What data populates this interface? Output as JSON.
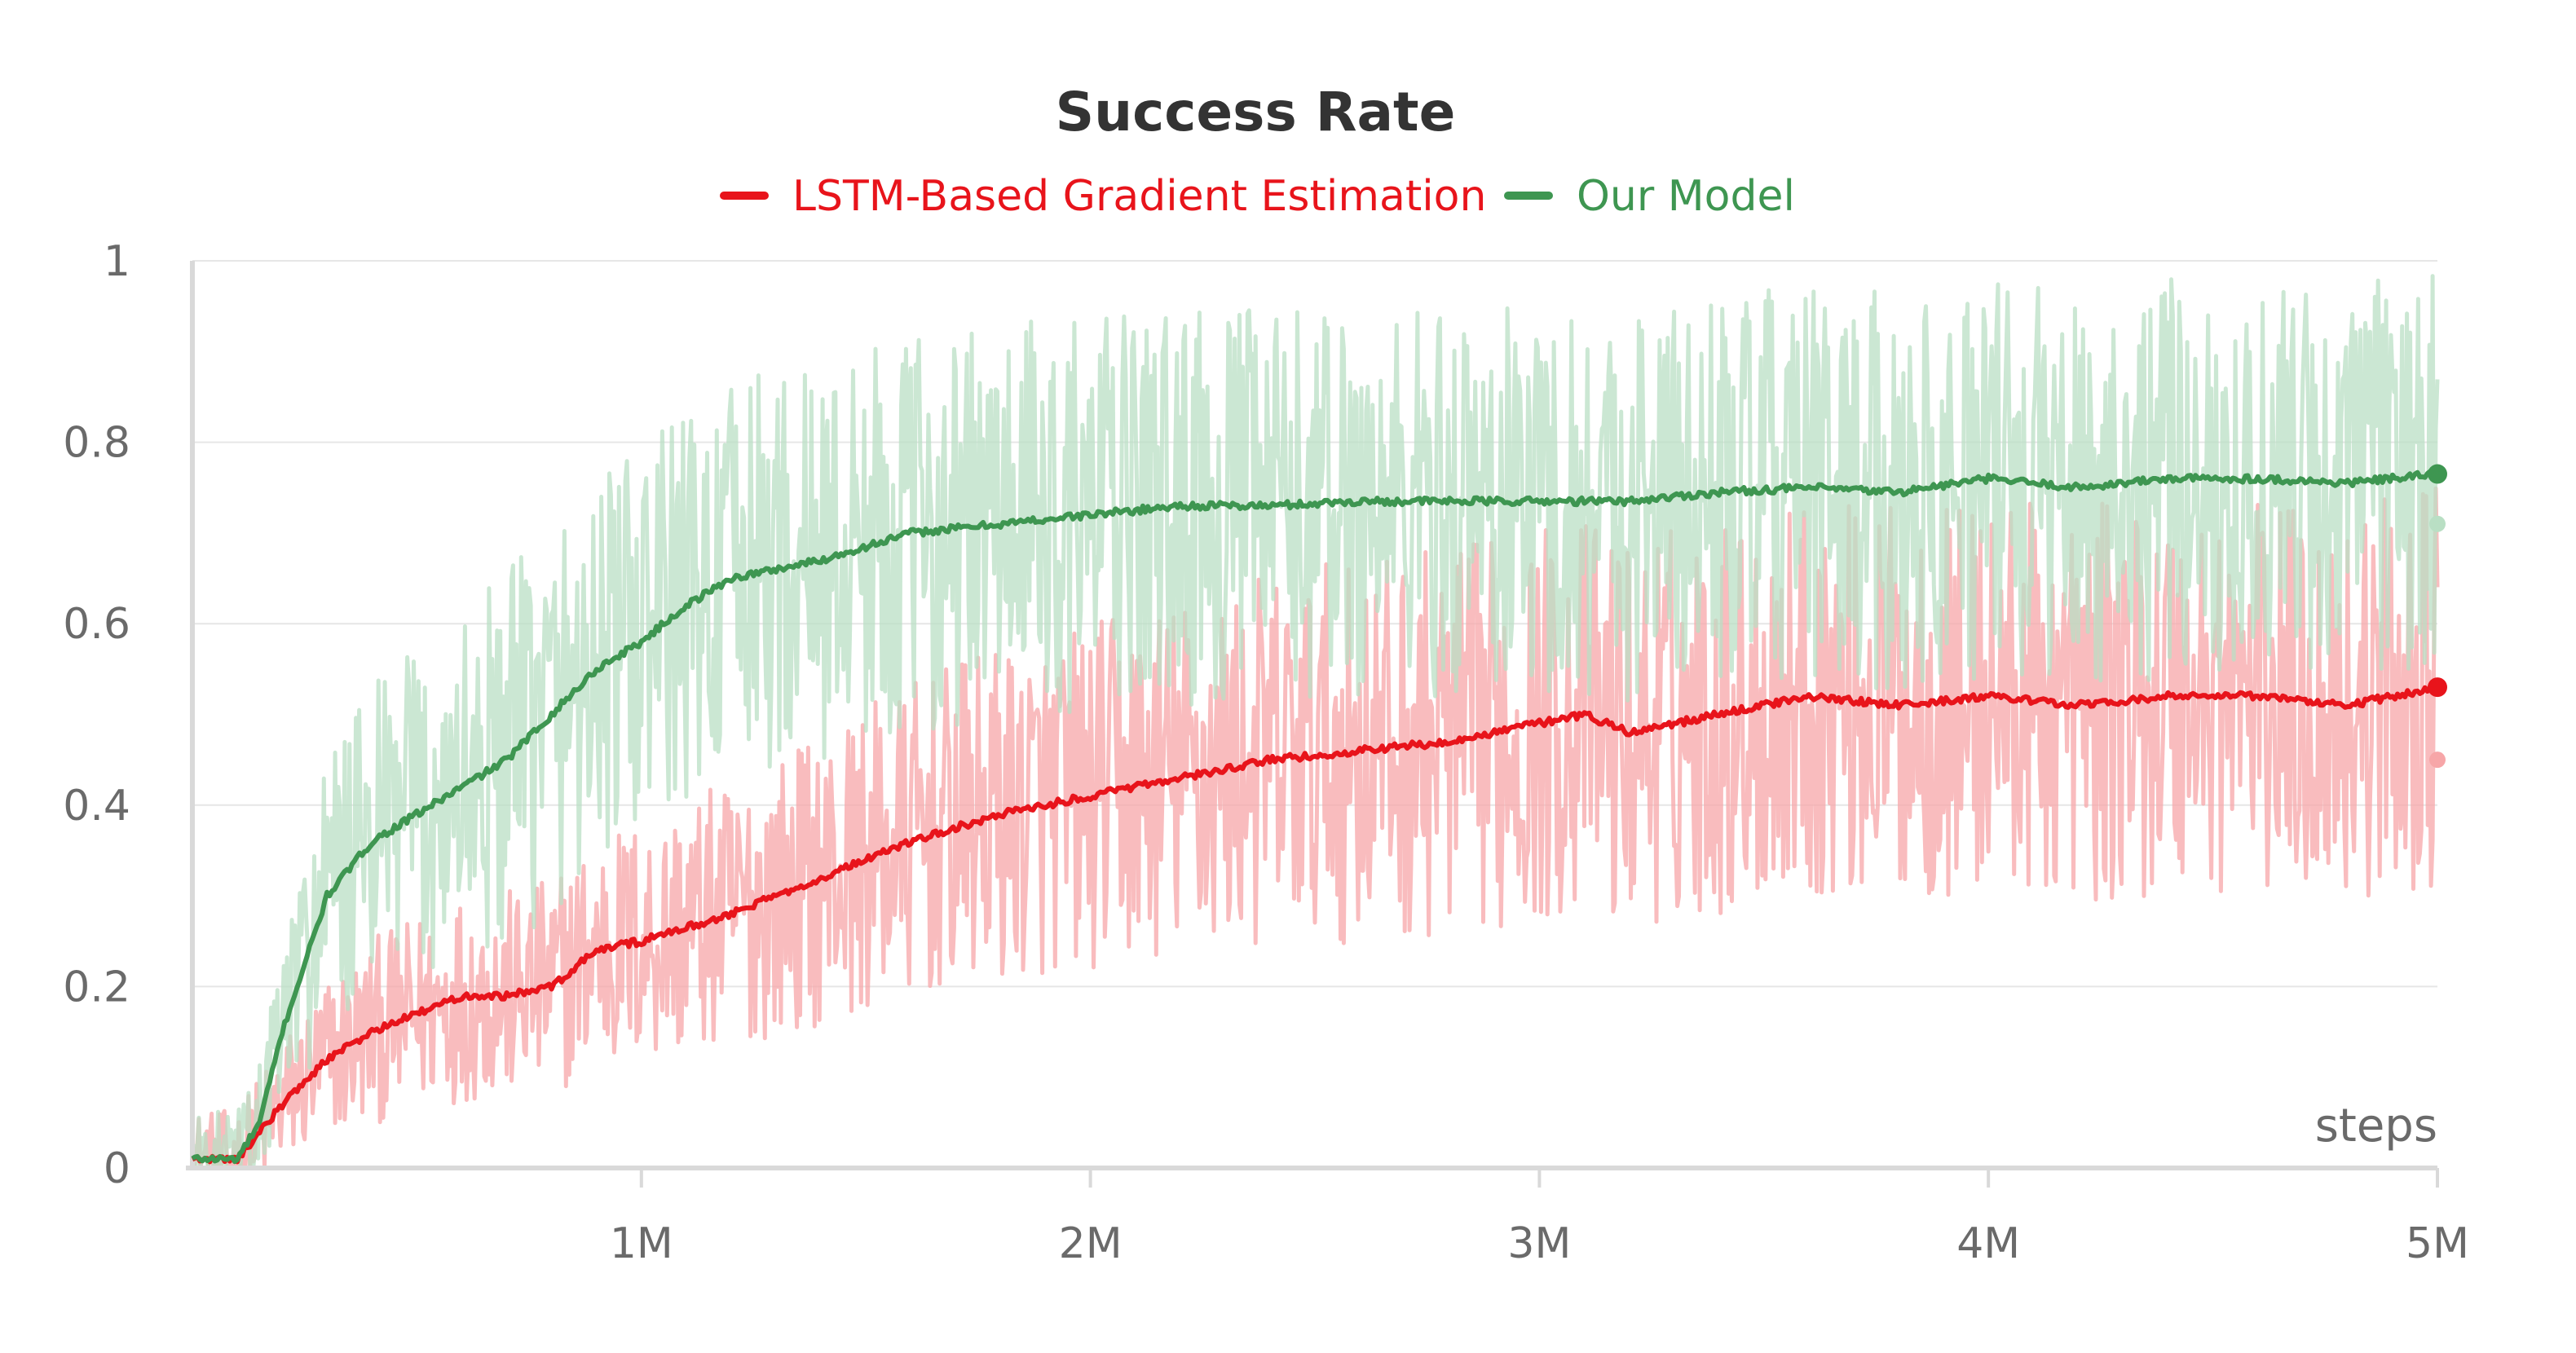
{
  "chart_data": {
    "type": "line",
    "title": "Success Rate",
    "xlabel": "steps",
    "ylabel": "",
    "xlim": [
      0,
      5000000
    ],
    "ylim": [
      0,
      1
    ],
    "x_ticks": [
      {
        "value": 1000000,
        "label": "1M"
      },
      {
        "value": 2000000,
        "label": "2M"
      },
      {
        "value": 3000000,
        "label": "3M"
      },
      {
        "value": 4000000,
        "label": "4M"
      },
      {
        "value": 5000000,
        "label": "5M"
      }
    ],
    "y_ticks": [
      {
        "value": 0,
        "label": "0"
      },
      {
        "value": 0.2,
        "label": "0.2"
      },
      {
        "value": 0.4,
        "label": "0.4"
      },
      {
        "value": 0.6,
        "label": "0.6"
      },
      {
        "value": 0.8,
        "label": "0.8"
      },
      {
        "value": 1,
        "label": "1"
      }
    ],
    "grid": true,
    "legend_position": "top-center",
    "series": [
      {
        "name": "LSTM-Based Gradient Estimation",
        "color": "#e8141b",
        "raw_color": "#f7a6a8",
        "x": [
          0,
          100000,
          200000,
          300000,
          400000,
          500000,
          600000,
          700000,
          800000,
          900000,
          1000000,
          1200000,
          1400000,
          1600000,
          1800000,
          2000000,
          2200000,
          2400000,
          2600000,
          2800000,
          3000000,
          3100000,
          3200000,
          3400000,
          3600000,
          3800000,
          4000000,
          4200000,
          4400000,
          4600000,
          4800000,
          5000000
        ],
        "values": [
          0.01,
          0.01,
          0.07,
          0.12,
          0.15,
          0.17,
          0.19,
          0.19,
          0.2,
          0.24,
          0.25,
          0.28,
          0.32,
          0.36,
          0.39,
          0.41,
          0.43,
          0.45,
          0.46,
          0.47,
          0.49,
          0.5,
          0.48,
          0.5,
          0.52,
          0.51,
          0.52,
          0.51,
          0.52,
          0.52,
          0.51,
          0.53
        ],
        "end_smoothed": 0.53,
        "end_raw": 0.45
      },
      {
        "name": "Our Model",
        "color": "#3e9651",
        "raw_color": "#b9dfc4",
        "x": [
          0,
          100000,
          150000,
          200000,
          300000,
          400000,
          500000,
          600000,
          700000,
          800000,
          900000,
          1000000,
          1100000,
          1200000,
          1300000,
          1400000,
          1600000,
          1800000,
          2000000,
          2200000,
          2400000,
          2600000,
          2800000,
          3000000,
          3200000,
          3400000,
          3600000,
          3800000,
          4000000,
          4200000,
          4400000,
          4600000,
          4800000,
          5000000
        ],
        "values": [
          0.01,
          0.01,
          0.05,
          0.15,
          0.3,
          0.36,
          0.39,
          0.42,
          0.45,
          0.5,
          0.55,
          0.58,
          0.62,
          0.65,
          0.66,
          0.67,
          0.7,
          0.71,
          0.72,
          0.73,
          0.73,
          0.735,
          0.735,
          0.735,
          0.735,
          0.745,
          0.75,
          0.745,
          0.76,
          0.75,
          0.76,
          0.76,
          0.755,
          0.765
        ],
        "end_smoothed": 0.765,
        "end_raw": 0.71
      }
    ]
  }
}
